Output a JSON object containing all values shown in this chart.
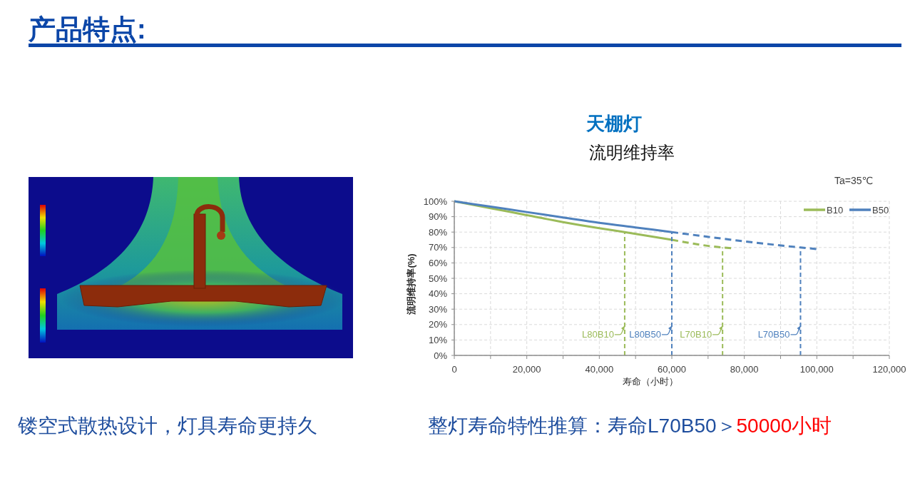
{
  "chart_data": {
    "type": "line",
    "title": "天棚灯",
    "subtitle": "流明维持率",
    "xlabel": "寿命（小时）",
    "ylabel": "流明维持率(%)",
    "xlim": [
      0,
      120000
    ],
    "ylim": [
      0,
      100
    ],
    "xticks": [
      0,
      {
        "value": 10000,
        "label": null
      },
      {
        "value": 20000,
        "label": "20,000"
      },
      {
        "value": 30000,
        "label": null
      },
      {
        "value": 40000,
        "label": "40,000"
      },
      {
        "value": 50000,
        "label": null
      },
      {
        "value": 60000,
        "label": "60,000"
      },
      {
        "value": 70000,
        "label": null
      },
      {
        "value": 80000,
        "label": "80,000"
      },
      {
        "value": 90000,
        "label": null
      },
      {
        "value": 100000,
        "label": "100,000"
      },
      {
        "value": 110000,
        "label": null
      },
      {
        "value": 120000,
        "label": "120,000"
      }
    ],
    "yticks": [
      {
        "value": 0,
        "label": "0%"
      },
      {
        "value": 10,
        "label": "10%"
      },
      {
        "value": 20,
        "label": "20%"
      },
      {
        "value": 30,
        "label": "30%"
      },
      {
        "value": 40,
        "label": "40%"
      },
      {
        "value": 50,
        "label": "50%"
      },
      {
        "value": 60,
        "label": "60%"
      },
      {
        "value": 70,
        "label": "70%"
      },
      {
        "value": 80,
        "label": "80%"
      },
      {
        "value": 90,
        "label": "90%"
      },
      {
        "value": 100,
        "label": "100%"
      }
    ],
    "grid": true,
    "legend": "top right",
    "series": [
      {
        "name": "B10",
        "color": "#9bbb59",
        "x": [
          0,
          10000,
          20000,
          30000,
          40000,
          47000,
          60000
        ],
        "values": [
          100,
          95.5,
          91,
          86.5,
          82.5,
          80,
          75
        ]
      },
      {
        "color": "#9bbb59",
        "line_style": "dashed",
        "x": [
          60000,
          74000,
          77000
        ],
        "values": [
          75,
          70,
          69.5
        ]
      },
      {
        "name": "B50",
        "color": "#4f81bd",
        "x": [
          0,
          10000,
          20000,
          30000,
          40000,
          50000,
          60000
        ],
        "values": [
          100,
          96.5,
          93,
          89.5,
          86,
          83,
          80
        ]
      },
      {
        "color": "#4f81bd",
        "line_style": "dashed",
        "x": [
          60000,
          80000,
          95500,
          100000
        ],
        "values": [
          80,
          74,
          70,
          69
        ]
      },
      {
        "color": "#9bbb59",
        "line_style": "dashed",
        "x": [
          47000,
          47000
        ],
        "values": [
          0,
          80
        ]
      },
      {
        "color": "#4f81bd",
        "line_style": "dashed",
        "x": [
          60000,
          60000
        ],
        "values": [
          0,
          80
        ]
      },
      {
        "color": "#9bbb59",
        "line_style": "dashed",
        "x": [
          74000,
          74000
        ],
        "values": [
          0,
          70
        ]
      },
      {
        "color": "#4f81bd",
        "line_style": "dashed",
        "x": [
          95500,
          95500
        ],
        "values": [
          0,
          70
        ]
      }
    ],
    "annotations": [
      {
        "text": "L80B10",
        "x": 47000,
        "y": 19
      },
      {
        "text": "L80B50",
        "x": 60000,
        "y": 19
      },
      {
        "text": "L70B10",
        "x": 74000,
        "y": 19
      },
      {
        "text": "L70B50",
        "x": 95500,
        "y": 19
      },
      "Ta=35℃",
      "产品特点:",
      "镂空式散热设计，灯具寿命更持久",
      "整灯寿命特性推算：寿命L70B50＞",
      "50000小时"
    ]
  }
}
